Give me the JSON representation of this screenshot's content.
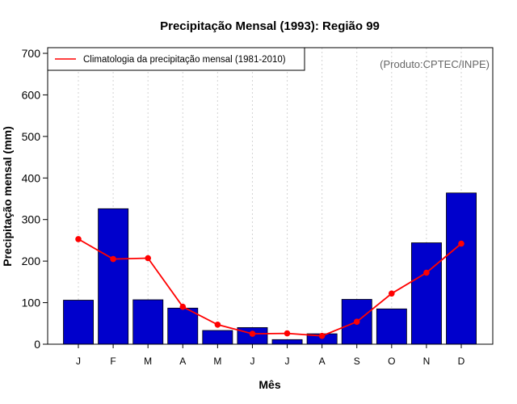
{
  "chart_data": {
    "type": "bar",
    "title": "Precipitação Mensal (1993): Região 99",
    "xlabel": "Mês",
    "ylabel": "Precipitação mensal (mm)",
    "categories": [
      "J",
      "F",
      "M",
      "A",
      "M",
      "J",
      "J",
      "A",
      "S",
      "O",
      "N",
      "D"
    ],
    "ylim": [
      0,
      700
    ],
    "yticks": [
      0,
      100,
      200,
      300,
      400,
      500,
      600,
      700
    ],
    "grid": "vertical-dotted",
    "series": [
      {
        "name": "Precipitação mensal 1993",
        "type": "bar",
        "color": "#0000cc",
        "values": [
          106,
          326,
          107,
          87,
          33,
          40,
          11,
          25,
          108,
          85,
          244,
          364
        ]
      },
      {
        "name": "Climatologia da precipitação mensal (1981-2010)",
        "type": "line",
        "color": "#ff0000",
        "values": [
          253,
          205,
          207,
          90,
          47,
          25,
          26,
          20,
          54,
          122,
          172,
          242
        ]
      }
    ],
    "legend": {
      "position": "top-left",
      "label": "Climatologia da precipitação mensal (1981-2010)"
    },
    "annotation": "(Produto:CPTEC/INPE)"
  }
}
